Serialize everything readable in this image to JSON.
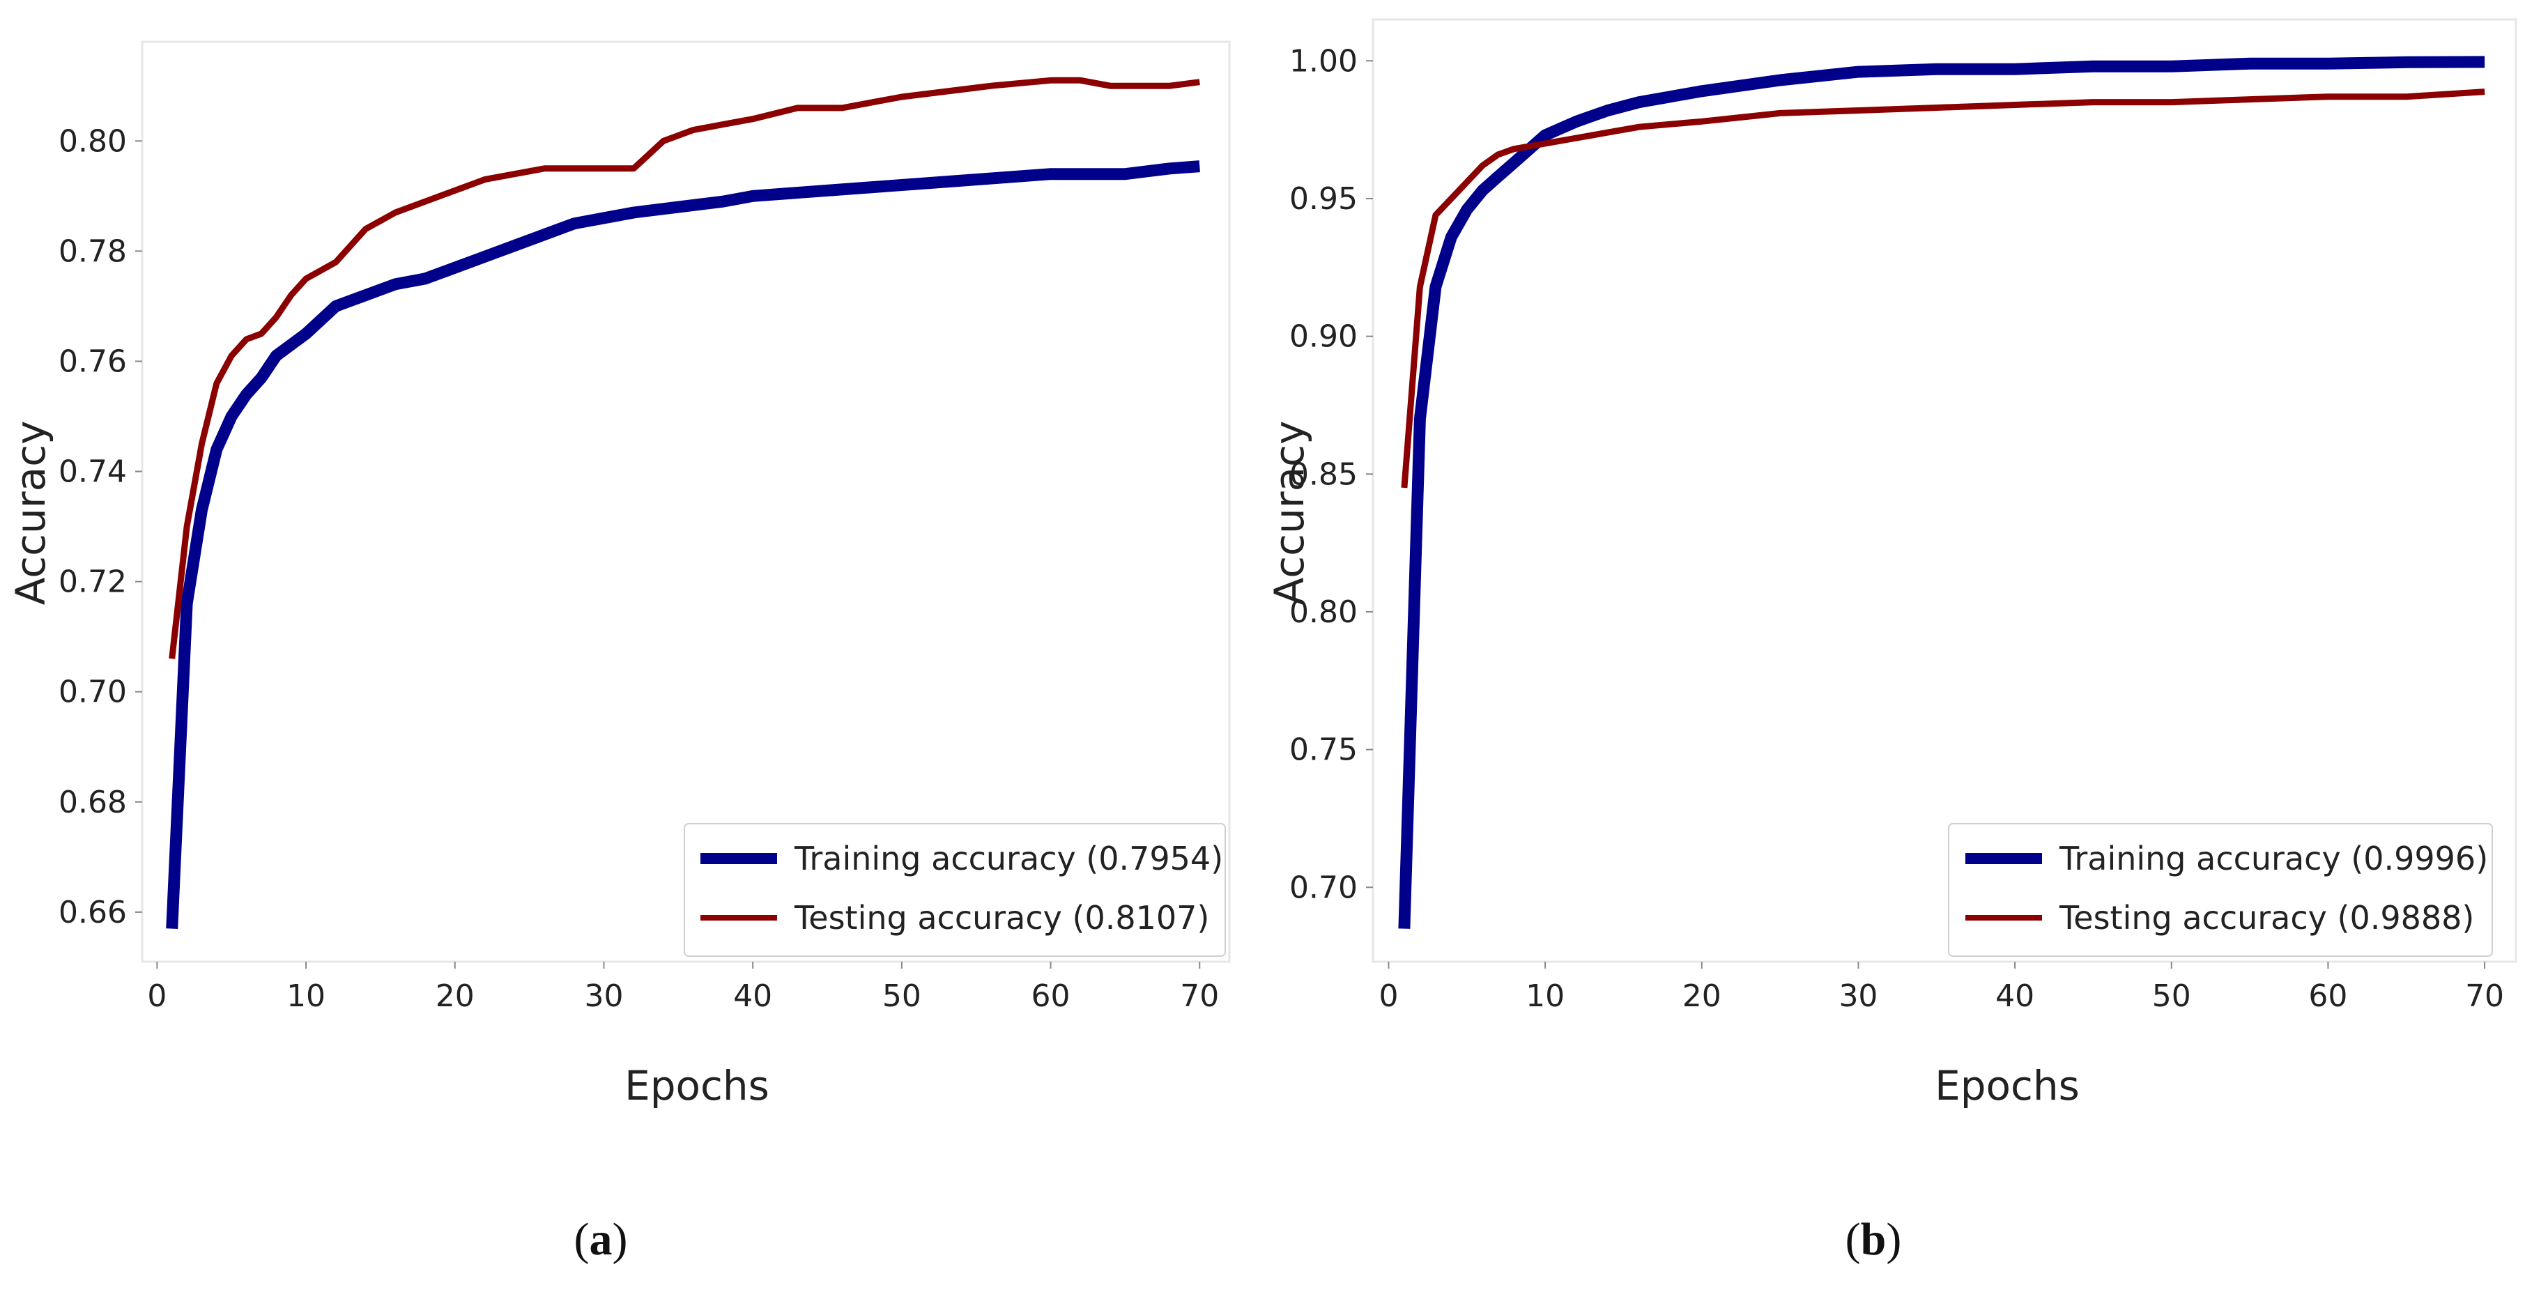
{
  "colors": {
    "training": "#00008b",
    "testing": "#8b0000",
    "frame": "#e6e6e6",
    "axis_text": "#222222"
  },
  "chart_data": [
    {
      "type": "line",
      "panel_letter": "a",
      "xlabel": "Epochs",
      "ylabel": "Accuracy",
      "xlim": [
        -1,
        72
      ],
      "ylim": [
        0.651,
        0.818
      ],
      "xticks": [
        0,
        10,
        20,
        30,
        40,
        50,
        60,
        70
      ],
      "yticks": [
        0.66,
        0.68,
        0.7,
        0.72,
        0.74,
        0.76,
        0.78,
        0.8
      ],
      "ytick_labels": [
        "0.66",
        "0.68",
        "0.70",
        "0.72",
        "0.74",
        "0.76",
        "0.78",
        "0.80"
      ],
      "legend_position": "lower-right",
      "series": [
        {
          "name": "Training accuracy (0.7954)",
          "color": "#00008b",
          "x": [
            1,
            2,
            3,
            4,
            5,
            6,
            7,
            8,
            9,
            10,
            12,
            14,
            16,
            18,
            20,
            22,
            24,
            26,
            28,
            30,
            32,
            35,
            38,
            40,
            45,
            50,
            55,
            60,
            65,
            68,
            70
          ],
          "values": [
            0.657,
            0.716,
            0.733,
            0.744,
            0.75,
            0.754,
            0.757,
            0.761,
            0.763,
            0.765,
            0.77,
            0.772,
            0.774,
            0.775,
            0.777,
            0.779,
            0.781,
            0.783,
            0.785,
            0.786,
            0.787,
            0.788,
            0.789,
            0.79,
            0.791,
            0.792,
            0.793,
            0.794,
            0.794,
            0.795,
            0.7954
          ]
        },
        {
          "name": "Testing accuracy (0.8107)",
          "color": "#8b0000",
          "x": [
            1,
            2,
            3,
            4,
            5,
            6,
            7,
            8,
            9,
            10,
            12,
            14,
            16,
            18,
            20,
            22,
            24,
            26,
            28,
            30,
            32,
            34,
            36,
            38,
            40,
            43,
            46,
            48,
            50,
            53,
            56,
            60,
            62,
            64,
            66,
            68,
            70
          ],
          "values": [
            0.706,
            0.73,
            0.745,
            0.756,
            0.761,
            0.764,
            0.765,
            0.768,
            0.772,
            0.775,
            0.778,
            0.784,
            0.787,
            0.789,
            0.791,
            0.793,
            0.794,
            0.795,
            0.795,
            0.795,
            0.795,
            0.8,
            0.802,
            0.803,
            0.804,
            0.806,
            0.806,
            0.807,
            0.808,
            0.809,
            0.81,
            0.811,
            0.811,
            0.81,
            0.81,
            0.81,
            0.8107
          ]
        }
      ]
    },
    {
      "type": "line",
      "panel_letter": "b",
      "xlabel": "Epochs",
      "ylabel": "Accuracy",
      "xlim": [
        -1,
        72
      ],
      "ylim": [
        0.673,
        1.015
      ],
      "xticks": [
        0,
        10,
        20,
        30,
        40,
        50,
        60,
        70
      ],
      "yticks": [
        0.7,
        0.75,
        0.8,
        0.85,
        0.9,
        0.95,
        1.0
      ],
      "ytick_labels": [
        "0.70",
        "0.75",
        "0.80",
        "0.85",
        "0.90",
        "0.95",
        "1.00"
      ],
      "legend_position": "lower-right",
      "series": [
        {
          "name": "Training accuracy (0.9996)",
          "color": "#00008b",
          "x": [
            1,
            2,
            3,
            4,
            5,
            6,
            7,
            8,
            9,
            10,
            12,
            14,
            16,
            18,
            20,
            25,
            30,
            35,
            40,
            45,
            50,
            55,
            60,
            65,
            70
          ],
          "values": [
            0.685,
            0.87,
            0.918,
            0.936,
            0.946,
            0.953,
            0.958,
            0.963,
            0.968,
            0.973,
            0.978,
            0.982,
            0.985,
            0.987,
            0.989,
            0.993,
            0.996,
            0.997,
            0.997,
            0.998,
            0.998,
            0.999,
            0.999,
            0.9995,
            0.9996
          ]
        },
        {
          "name": "Testing accuracy (0.9888)",
          "color": "#8b0000",
          "x": [
            1,
            2,
            3,
            4,
            5,
            6,
            7,
            8,
            9,
            10,
            12,
            14,
            16,
            18,
            20,
            25,
            30,
            35,
            40,
            45,
            50,
            55,
            60,
            65,
            70
          ],
          "values": [
            0.845,
            0.918,
            0.944,
            0.95,
            0.956,
            0.962,
            0.966,
            0.968,
            0.969,
            0.97,
            0.972,
            0.974,
            0.976,
            0.977,
            0.978,
            0.981,
            0.982,
            0.983,
            0.984,
            0.985,
            0.985,
            0.986,
            0.987,
            0.987,
            0.9888
          ]
        }
      ]
    }
  ]
}
